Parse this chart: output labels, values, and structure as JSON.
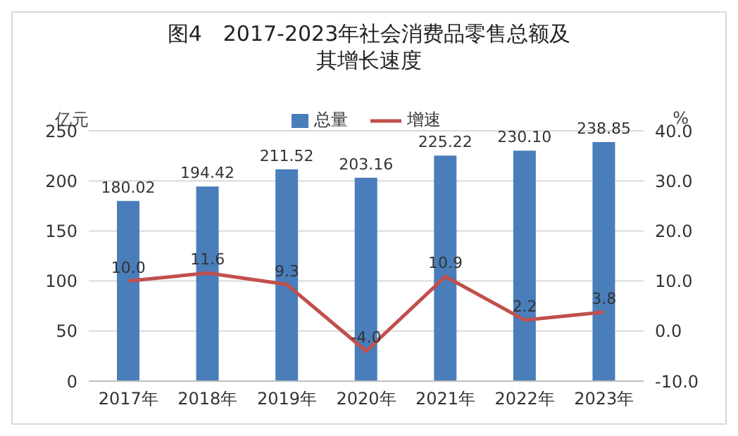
{
  "chart_data": {
    "type": "bar",
    "title": "图4　2017-2023年社会消费品零售总额及其增长速度",
    "ylabel": "亿元",
    "y2label": "%",
    "categories": [
      "2017年",
      "2018年",
      "2019年",
      "2020年",
      "2021年",
      "2022年",
      "2023年"
    ],
    "series": [
      {
        "name": "总量",
        "color": "#4a7ebb",
        "values": [
          180.02,
          194.42,
          211.52,
          203.16,
          225.22,
          230.1,
          238.85
        ],
        "value_labels": [
          "180.02",
          "194.42",
          "211.52",
          "203.16",
          "225.22",
          "230.10",
          "238.85"
        ]
      },
      {
        "name": "增速",
        "type": "line",
        "axis": "y2",
        "color": "#c0504d",
        "values": [
          10.0,
          11.6,
          9.3,
          -4.0,
          10.9,
          2.2,
          3.8
        ],
        "value_labels": [
          "10.0",
          "11.6",
          "9.3",
          "-4.0",
          "10.9",
          "2.2",
          "3.8"
        ]
      }
    ],
    "ylim": [
      0,
      250
    ],
    "yticks": [
      0,
      50,
      100,
      150,
      200,
      250
    ],
    "y2lim": [
      -10,
      40
    ],
    "y2ticks": [
      {
        "value": -10,
        "label": "-10.0"
      },
      {
        "value": 0,
        "label": "0.0"
      },
      {
        "value": 10,
        "label": "10.0"
      },
      {
        "value": 20,
        "label": "20.0"
      },
      {
        "value": 30,
        "label": "30.0"
      },
      {
        "value": 40,
        "label": "40.0"
      }
    ],
    "grid": "y",
    "legend": "top",
    "marker": "none",
    "line_style": "solid"
  }
}
